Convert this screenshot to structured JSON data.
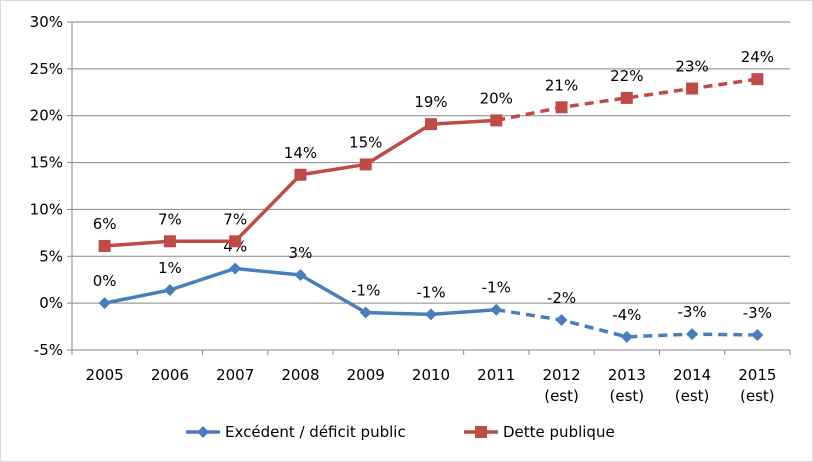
{
  "chart_data": {
    "type": "line",
    "categories": [
      [
        "2005"
      ],
      [
        "2006"
      ],
      [
        "2007"
      ],
      [
        "2008"
      ],
      [
        "2009"
      ],
      [
        "2010"
      ],
      [
        "2011"
      ],
      [
        "2012",
        "(est)"
      ],
      [
        "2013",
        "(est)"
      ],
      [
        "2014",
        "(est)"
      ],
      [
        "2015",
        "(est)"
      ]
    ],
    "y_tick_labels": [
      "-5%",
      "0%",
      "5%",
      "10%",
      "15%",
      "20%",
      "25%",
      "30%"
    ],
    "ylim": [
      -5,
      30
    ],
    "grid": "horizontal",
    "legend_position": "bottom",
    "estimate_style": "dashed from 2011 onward",
    "series": [
      {
        "name": "Excédent / déficit public",
        "color": "#4a7ebb",
        "marker": "diamond",
        "values": [
          0,
          1.4,
          3.7,
          3.0,
          -1.0,
          -1.2,
          -0.7,
          -1.8,
          -3.6,
          -3.3,
          -3.4
        ],
        "labels": [
          "0%",
          "1%",
          "4%",
          "3%",
          "-1%",
          "-1%",
          "-1%",
          "-2%",
          "-4%",
          "-3%",
          "-3%"
        ]
      },
      {
        "name": "Dette publique",
        "color": "#be4b48",
        "marker": "square",
        "values": [
          6.1,
          6.6,
          6.6,
          13.7,
          14.8,
          19.1,
          19.5,
          20.9,
          21.9,
          22.9,
          23.9
        ],
        "labels": [
          "6%",
          "7%",
          "7%",
          "14%",
          "15%",
          "19%",
          "20%",
          "21%",
          "22%",
          "23%",
          "24%"
        ]
      }
    ]
  }
}
